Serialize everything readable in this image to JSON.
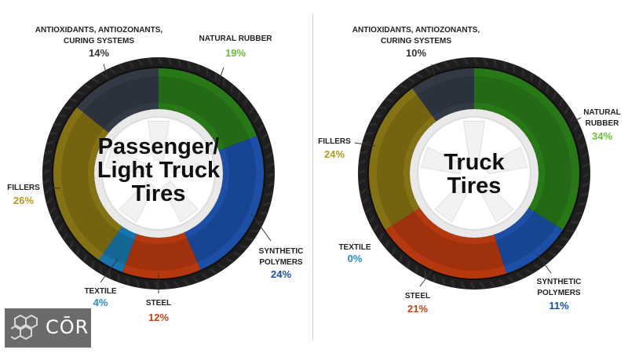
{
  "chart_data": [
    {
      "type": "pie",
      "title": "Passenger/ Light Truck Tires",
      "title_lines": [
        "Passenger/",
        "Light Truck",
        "Tires"
      ],
      "slices": [
        {
          "label": "NATURAL RUBBER",
          "label_lines": [
            "NATURAL RUBBER"
          ],
          "value": 19,
          "pct": "19%",
          "color": "#2e8b1a",
          "pct_color": "#6abf3a"
        },
        {
          "label": "SYNTHETIC POLYMERS",
          "label_lines": [
            "SYNTHETIC",
            "POLYMERS"
          ],
          "value": 24,
          "pct": "24%",
          "color": "#1f5bbf",
          "pct_color": "#1b4fa8"
        },
        {
          "label": "STEEL",
          "label_lines": [
            "STEEL"
          ],
          "value": 12,
          "pct": "12%",
          "color": "#d4400f",
          "pct_color": "#c1441a"
        },
        {
          "label": "TEXTILE",
          "label_lines": [
            "TEXTILE"
          ],
          "value": 4,
          "pct": "4%",
          "color": "#1a86c6",
          "pct_color": "#2a8ccf"
        },
        {
          "label": "FILLERS",
          "label_lines": [
            "FILLERS"
          ],
          "value": 26,
          "pct": "26%",
          "color": "#9a8416",
          "pct_color": "#b39a1c"
        },
        {
          "label": "ANTIOXIDANTS, ANTIOZONANTS, CURING SYSTEMS",
          "label_lines": [
            "ANTIOXIDANTS, ANTIOZONANTS,",
            "CURING SYSTEMS"
          ],
          "value": 14,
          "pct": "14%",
          "color": "#3a4250",
          "pct_color": "#333333"
        }
      ]
    },
    {
      "type": "pie",
      "title": "Truck Tires",
      "title_lines": [
        "Truck",
        "Tires"
      ],
      "slices": [
        {
          "label": "NATURAL RUBBER",
          "label_lines": [
            "NATURAL",
            "RUBBER"
          ],
          "value": 34,
          "pct": "34%",
          "color": "#2e8b1a",
          "pct_color": "#6abf3a"
        },
        {
          "label": "SYNTHETIC POLYMERS",
          "label_lines": [
            "SYNTHETIC",
            "POLYMERS"
          ],
          "value": 11,
          "pct": "11%",
          "color": "#1f5bbf",
          "pct_color": "#1b4fa8"
        },
        {
          "label": "STEEL",
          "label_lines": [
            "STEEL"
          ],
          "value": 21,
          "pct": "21%",
          "color": "#d4400f",
          "pct_color": "#c1441a"
        },
        {
          "label": "TEXTILE",
          "label_lines": [
            "TEXTILE"
          ],
          "value": 0,
          "pct": "0%",
          "color": "#1a86c6",
          "pct_color": "#2a8ccf"
        },
        {
          "label": "FILLERS",
          "label_lines": [
            "FILLERS"
          ],
          "value": 24,
          "pct": "24%",
          "color": "#9a8416",
          "pct_color": "#b39a1c"
        },
        {
          "label": "ANTIOXIDANTS, ANTIOZONANTS, CURING SYSTEMS",
          "label_lines": [
            "ANTIOXIDANTS, ANTIOZONANTS,",
            "CURING SYSTEMS"
          ],
          "value": 10,
          "pct": "10%",
          "color": "#3a4250",
          "pct_color": "#333333"
        }
      ]
    }
  ],
  "logo": {
    "text": "CŌR",
    "icon": "hexagon-cluster-icon"
  }
}
